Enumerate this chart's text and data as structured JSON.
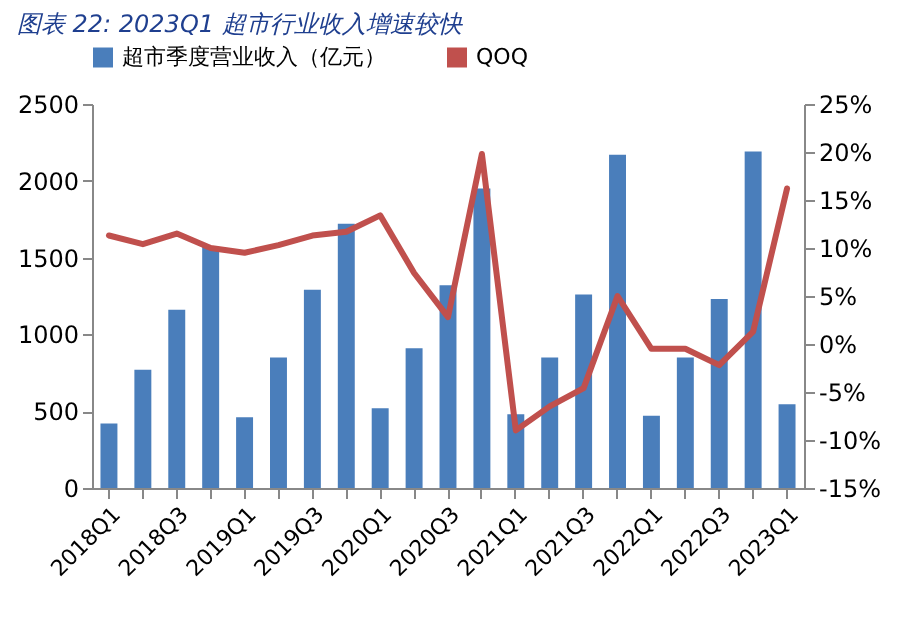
{
  "chart_data": {
    "type": "bar",
    "title": "图表 22:  2023Q1 超市行业收入增速较快",
    "categories": [
      "2018Q1",
      null,
      "2018Q3",
      null,
      "2019Q1",
      null,
      "2019Q3",
      null,
      "2020Q1",
      null,
      "2020Q3",
      null,
      "2021Q1",
      null,
      "2021Q3",
      null,
      "2022Q1",
      null,
      "2022Q3",
      null,
      "2023Q1"
    ],
    "series": [
      {
        "name": "超市季度营业收入（亿元）",
        "color": "#4a7ebb",
        "values": [
          420,
          770,
          1160,
          1570,
          460,
          850,
          1290,
          1720,
          520,
          910,
          1320,
          1950,
          480,
          850,
          1260,
          2170,
          470,
          850,
          1230,
          2190,
          545
        ]
      },
      {
        "name": "QOQ",
        "type": "line",
        "axis": "y2",
        "color": "#c0504d",
        "values": [
          11.3,
          10.4,
          11.5,
          10.0,
          9.5,
          10.3,
          11.3,
          11.7,
          13.4,
          7.4,
          2.8,
          19.8,
          -9.0,
          -6.5,
          -4.6,
          5.0,
          -0.5,
          -0.5,
          -2.2,
          1.3,
          16.2
        ]
      }
    ],
    "ylim": [
      0,
      2500
    ],
    "yticks": [
      0,
      500,
      1000,
      1500,
      2000,
      2500
    ],
    "y2lim": [
      -15,
      25
    ],
    "y2ticks": [
      {
        "value": -15,
        "label": "-15%"
      },
      {
        "value": -10,
        "label": "-10%"
      },
      {
        "value": -5,
        "label": "-5%"
      },
      {
        "value": 0,
        "label": "0%"
      },
      {
        "value": 5,
        "label": "5%"
      },
      {
        "value": 10,
        "label": "10%"
      },
      {
        "value": 15,
        "label": "15%"
      },
      {
        "value": 20,
        "label": "20%"
      },
      {
        "value": 25,
        "label": "25%"
      }
    ],
    "grid": false,
    "legend": "top"
  }
}
